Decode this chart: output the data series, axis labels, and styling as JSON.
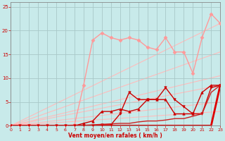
{
  "background_color": "#c8eaea",
  "grid_color": "#a8c8c8",
  "xlabel": "Vent moyen/en rafales ( km/h )",
  "xlim": [
    0,
    23
  ],
  "ylim": [
    0,
    26
  ],
  "yticks": [
    0,
    5,
    10,
    15,
    20,
    25
  ],
  "xticks": [
    0,
    1,
    2,
    3,
    4,
    5,
    6,
    7,
    8,
    9,
    10,
    11,
    12,
    13,
    14,
    15,
    16,
    17,
    18,
    19,
    20,
    21,
    22,
    23
  ],
  "ref_lines": [
    {
      "x0": 0,
      "y0": 0,
      "x1": 23,
      "y1": 21.5,
      "color": "#ffbbbb",
      "lw": 0.8
    },
    {
      "x0": 0,
      "y0": 0,
      "x1": 23,
      "y1": 15.5,
      "color": "#ffbbbb",
      "lw": 0.8
    },
    {
      "x0": 0,
      "y0": 0,
      "x1": 23,
      "y1": 10.5,
      "color": "#ffbbbb",
      "lw": 0.8
    },
    {
      "x0": 0,
      "y0": 0,
      "x1": 23,
      "y1": 8.5,
      "color": "#ffbbbb",
      "lw": 0.8
    },
    {
      "x0": 0,
      "y0": 0,
      "x1": 23,
      "y1": 5.0,
      "color": "#ffbbbb",
      "lw": 0.8
    },
    {
      "x0": 0,
      "y0": 0,
      "x1": 23,
      "y1": 3.0,
      "color": "#ffbbbb",
      "lw": 0.8
    }
  ],
  "data_lines": [
    {
      "x": [
        0,
        1,
        2,
        3,
        4,
        5,
        6,
        7,
        8,
        9,
        10,
        11,
        12,
        13,
        14,
        15,
        16,
        17,
        18,
        19,
        20,
        21,
        22,
        23
      ],
      "y": [
        0,
        0,
        0,
        0,
        0,
        0,
        0,
        0.2,
        8.5,
        18.0,
        19.5,
        18.5,
        18.0,
        18.5,
        18.0,
        16.5,
        16.0,
        18.5,
        15.5,
        15.5,
        11.0,
        18.5,
        23.5,
        21.5
      ],
      "color": "#ff9999",
      "linewidth": 1.0,
      "marker": "D",
      "markersize": 2.5,
      "linestyle": "-"
    },
    {
      "x": [
        0,
        1,
        2,
        3,
        4,
        5,
        6,
        7,
        8,
        9,
        10,
        11,
        12,
        13,
        14,
        15,
        16,
        17,
        18,
        19,
        20,
        21,
        22,
        23
      ],
      "y": [
        0,
        0,
        0,
        0,
        0,
        0,
        0,
        0,
        0.5,
        1.0,
        3.0,
        3.0,
        3.5,
        3.0,
        3.5,
        5.5,
        5.5,
        5.5,
        2.5,
        2.5,
        2.5,
        7.0,
        8.5,
        8.5
      ],
      "color": "#cc0000",
      "linewidth": 1.0,
      "marker": "^",
      "markersize": 2.5,
      "linestyle": "-"
    },
    {
      "x": [
        0,
        1,
        2,
        3,
        4,
        5,
        6,
        7,
        8,
        9,
        10,
        11,
        12,
        13,
        14,
        15,
        16,
        17,
        18,
        19,
        20,
        21,
        22,
        23
      ],
      "y": [
        0,
        0,
        0,
        0,
        0,
        0,
        0,
        0,
        0,
        0,
        0.2,
        0.2,
        2.5,
        7.0,
        5.5,
        5.5,
        5.5,
        8.0,
        5.5,
        4.0,
        2.5,
        2.5,
        8.0,
        8.5
      ],
      "color": "#cc0000",
      "linewidth": 1.0,
      "marker": "v",
      "markersize": 2.5,
      "linestyle": "-"
    },
    {
      "x": [
        0,
        1,
        2,
        3,
        4,
        5,
        6,
        7,
        8,
        9,
        10,
        11,
        12,
        13,
        14,
        15,
        16,
        17,
        18,
        19,
        20,
        21,
        22,
        23
      ],
      "y": [
        0,
        0,
        0,
        0,
        0,
        0,
        0,
        0,
        0,
        0,
        0,
        0,
        0,
        0,
        0,
        0,
        0,
        0,
        0,
        0,
        0,
        0,
        0,
        8.5
      ],
      "color": "#dd0000",
      "linewidth": 2.0,
      "marker": null,
      "linestyle": "-"
    },
    {
      "x": [
        0,
        1,
        2,
        3,
        4,
        5,
        6,
        7,
        8,
        9,
        10,
        11,
        12,
        13,
        14,
        15,
        16,
        17,
        18,
        19,
        20,
        21,
        22,
        23
      ],
      "y": [
        0,
        0,
        0,
        0,
        0,
        0,
        0,
        0,
        0.1,
        0.2,
        0.3,
        0.4,
        0.5,
        0.5,
        0.8,
        1.0,
        1.0,
        1.2,
        1.5,
        1.5,
        2.0,
        2.5,
        7.0,
        8.5
      ],
      "color": "#cc2222",
      "linewidth": 1.0,
      "marker": null,
      "linestyle": "-"
    }
  ]
}
